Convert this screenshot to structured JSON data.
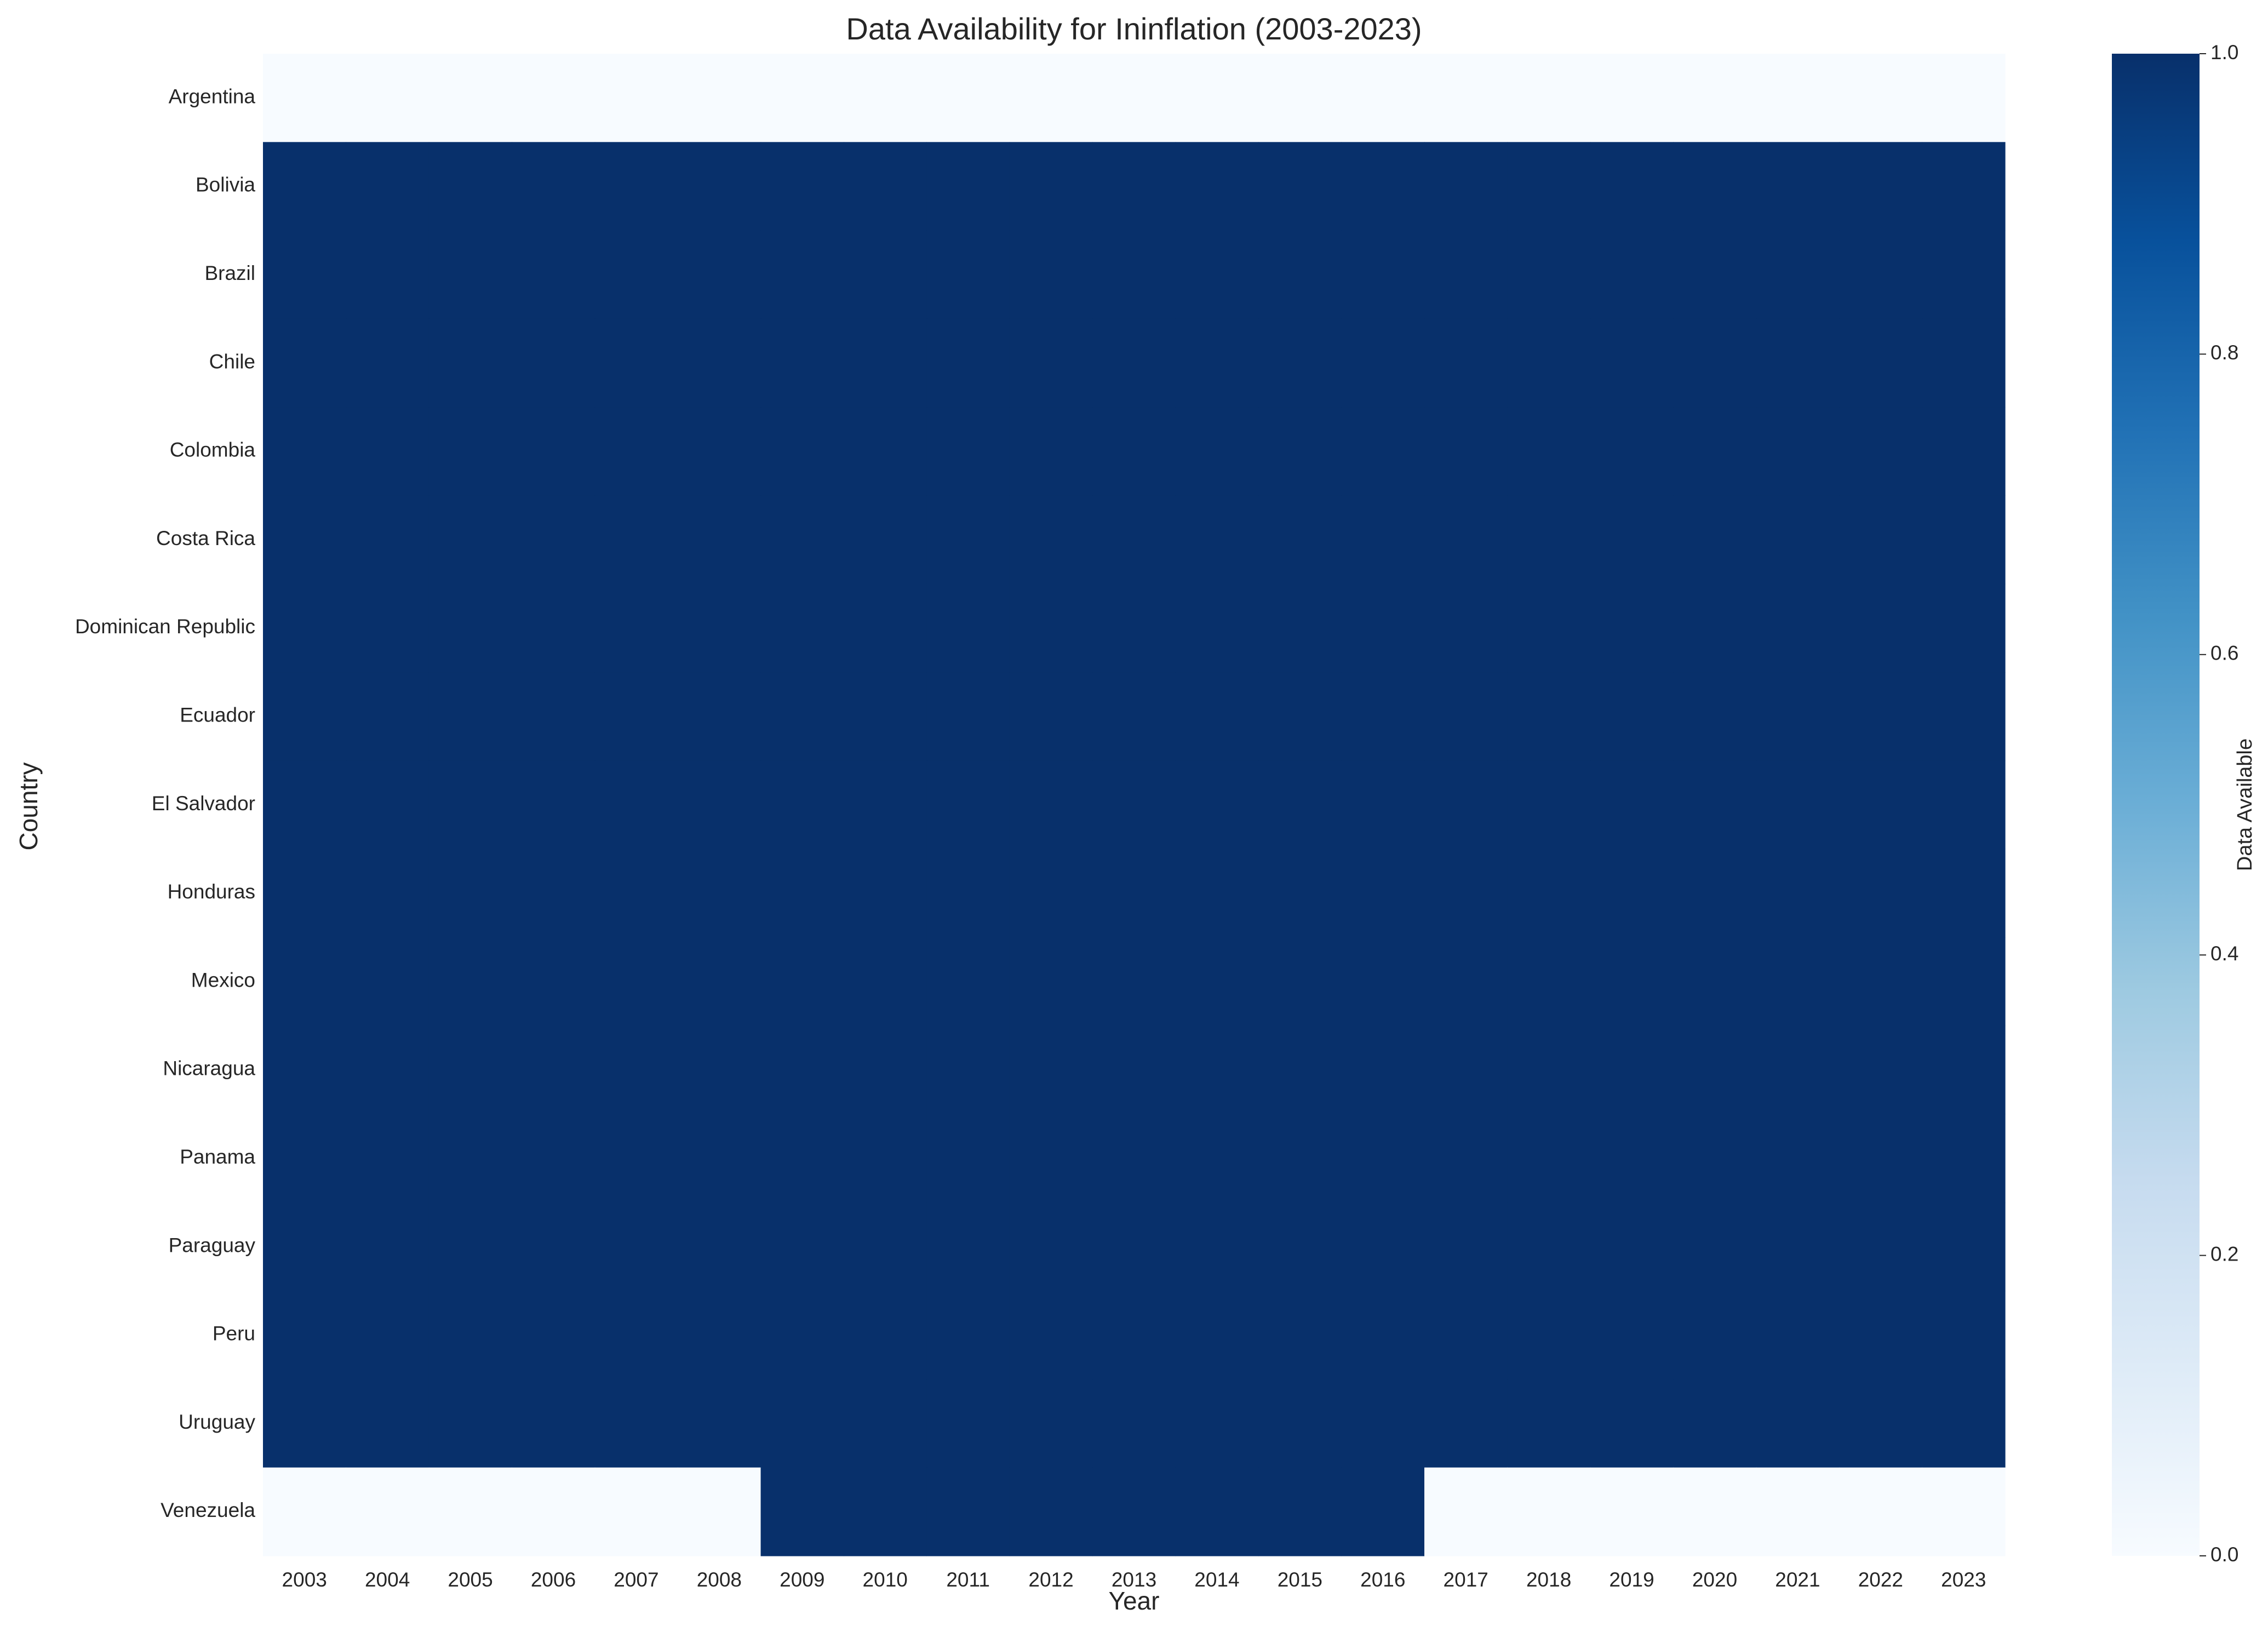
{
  "chart_data": {
    "type": "heatmap",
    "title": "Data Availability for Ininflation (2003-2023)",
    "xlabel": "Year",
    "ylabel": "Country",
    "x": [
      "2003",
      "2004",
      "2005",
      "2006",
      "2007",
      "2008",
      "2009",
      "2010",
      "2011",
      "2012",
      "2013",
      "2014",
      "2015",
      "2016",
      "2017",
      "2018",
      "2019",
      "2020",
      "2021",
      "2022",
      "2023"
    ],
    "y": [
      "Argentina",
      "Bolivia",
      "Brazil",
      "Chile",
      "Colombia",
      "Costa Rica",
      "Dominican Republic",
      "Ecuador",
      "El Salvador",
      "Honduras",
      "Mexico",
      "Nicaragua",
      "Panama",
      "Paraguay",
      "Peru",
      "Uruguay",
      "Venezuela"
    ],
    "values": [
      [
        0,
        0,
        0,
        0,
        0,
        0,
        0,
        0,
        0,
        0,
        0,
        0,
        0,
        0,
        0,
        0,
        0,
        0,
        0,
        0,
        0
      ],
      [
        1,
        1,
        1,
        1,
        1,
        1,
        1,
        1,
        1,
        1,
        1,
        1,
        1,
        1,
        1,
        1,
        1,
        1,
        1,
        1,
        1
      ],
      [
        1,
        1,
        1,
        1,
        1,
        1,
        1,
        1,
        1,
        1,
        1,
        1,
        1,
        1,
        1,
        1,
        1,
        1,
        1,
        1,
        1
      ],
      [
        1,
        1,
        1,
        1,
        1,
        1,
        1,
        1,
        1,
        1,
        1,
        1,
        1,
        1,
        1,
        1,
        1,
        1,
        1,
        1,
        1
      ],
      [
        1,
        1,
        1,
        1,
        1,
        1,
        1,
        1,
        1,
        1,
        1,
        1,
        1,
        1,
        1,
        1,
        1,
        1,
        1,
        1,
        1
      ],
      [
        1,
        1,
        1,
        1,
        1,
        1,
        1,
        1,
        1,
        1,
        1,
        1,
        1,
        1,
        1,
        1,
        1,
        1,
        1,
        1,
        1
      ],
      [
        1,
        1,
        1,
        1,
        1,
        1,
        1,
        1,
        1,
        1,
        1,
        1,
        1,
        1,
        1,
        1,
        1,
        1,
        1,
        1,
        1
      ],
      [
        1,
        1,
        1,
        1,
        1,
        1,
        1,
        1,
        1,
        1,
        1,
        1,
        1,
        1,
        1,
        1,
        1,
        1,
        1,
        1,
        1
      ],
      [
        1,
        1,
        1,
        1,
        1,
        1,
        1,
        1,
        1,
        1,
        1,
        1,
        1,
        1,
        1,
        1,
        1,
        1,
        1,
        1,
        1
      ],
      [
        1,
        1,
        1,
        1,
        1,
        1,
        1,
        1,
        1,
        1,
        1,
        1,
        1,
        1,
        1,
        1,
        1,
        1,
        1,
        1,
        1
      ],
      [
        1,
        1,
        1,
        1,
        1,
        1,
        1,
        1,
        1,
        1,
        1,
        1,
        1,
        1,
        1,
        1,
        1,
        1,
        1,
        1,
        1
      ],
      [
        1,
        1,
        1,
        1,
        1,
        1,
        1,
        1,
        1,
        1,
        1,
        1,
        1,
        1,
        1,
        1,
        1,
        1,
        1,
        1,
        1
      ],
      [
        1,
        1,
        1,
        1,
        1,
        1,
        1,
        1,
        1,
        1,
        1,
        1,
        1,
        1,
        1,
        1,
        1,
        1,
        1,
        1,
        1
      ],
      [
        1,
        1,
        1,
        1,
        1,
        1,
        1,
        1,
        1,
        1,
        1,
        1,
        1,
        1,
        1,
        1,
        1,
        1,
        1,
        1,
        1
      ],
      [
        1,
        1,
        1,
        1,
        1,
        1,
        1,
        1,
        1,
        1,
        1,
        1,
        1,
        1,
        1,
        1,
        1,
        1,
        1,
        1,
        1
      ],
      [
        1,
        1,
        1,
        1,
        1,
        1,
        1,
        1,
        1,
        1,
        1,
        1,
        1,
        1,
        1,
        1,
        1,
        1,
        1,
        1,
        1
      ],
      [
        0,
        0,
        0,
        0,
        0,
        0,
        1,
        1,
        1,
        1,
        1,
        1,
        1,
        1,
        0,
        0,
        0,
        0,
        0,
        0,
        0
      ]
    ],
    "colorbar": {
      "label": "Data Available",
      "range": [
        0,
        1
      ],
      "ticks": [
        "0.0",
        "0.2",
        "0.4",
        "0.6",
        "0.8",
        "1.0"
      ],
      "colormap": "Blues",
      "colors": [
        "#f7fbff",
        "#deebf7",
        "#c6dbef",
        "#9ecae1",
        "#6baed6",
        "#4292c6",
        "#2171b5",
        "#08519c",
        "#08306b"
      ]
    },
    "grid": false,
    "legend": "colorbar-right"
  }
}
